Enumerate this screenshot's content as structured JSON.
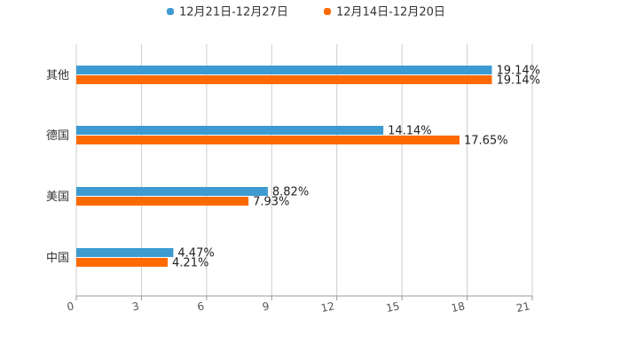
{
  "chart_data": {
    "type": "bar",
    "orientation": "horizontal",
    "categories": [
      "其他",
      "德国",
      "美国",
      "中国"
    ],
    "series": [
      {
        "name": "12月21日-12月27日",
        "color": "#3d9bd1",
        "values": [
          19.14,
          14.14,
          8.82,
          4.47
        ],
        "labels": [
          "19.14%",
          "14.14%",
          "8.82%",
          "4.47%"
        ]
      },
      {
        "name": "12月14日-12月20日",
        "color": "#ff6a00",
        "values": [
          19.14,
          17.65,
          7.93,
          4.21
        ],
        "labels": [
          "19.14%",
          "17.65%",
          "7.93%",
          "4.21%"
        ]
      }
    ],
    "xlim": [
      0,
      21
    ],
    "xticks": [
      "0",
      "3",
      "6",
      "9",
      "12",
      "15",
      "18",
      "21"
    ],
    "grid": true,
    "legend_position": "top-center",
    "title": "",
    "xlabel": "",
    "ylabel": ""
  }
}
